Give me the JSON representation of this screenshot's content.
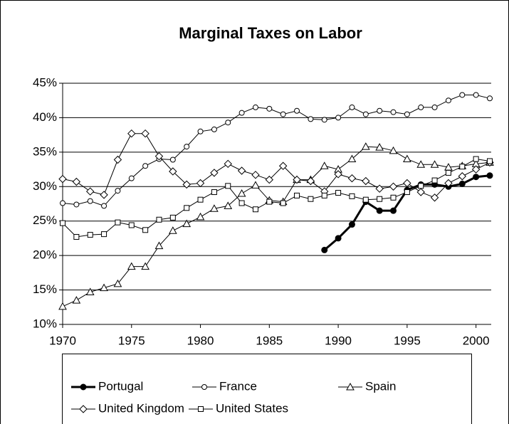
{
  "chart_data": {
    "type": "line",
    "title": "Marginal Taxes on Labor",
    "x": [
      1970,
      1971,
      1972,
      1973,
      1974,
      1975,
      1976,
      1977,
      1978,
      1979,
      1980,
      1981,
      1982,
      1983,
      1984,
      1985,
      1986,
      1987,
      1988,
      1989,
      1990,
      1991,
      1992,
      1993,
      1994,
      1995,
      1996,
      1997,
      1998,
      1999,
      2000,
      2001
    ],
    "xlim": [
      1970,
      2001
    ],
    "xticks": [
      1970,
      1975,
      1980,
      1985,
      1990,
      1995,
      2000
    ],
    "ylim": [
      10,
      45
    ],
    "yticks": [
      {
        "value": 10,
        "label": "10%"
      },
      {
        "value": 15,
        "label": "15%"
      },
      {
        "value": 20,
        "label": "20%"
      },
      {
        "value": 25,
        "label": "25%"
      },
      {
        "value": 30,
        "label": "30%"
      },
      {
        "value": 35,
        "label": "35%"
      },
      {
        "value": 40,
        "label": "40%"
      },
      {
        "value": 45,
        "label": "45%"
      }
    ],
    "grid": true,
    "series": [
      {
        "name": "Portugal",
        "color": "#000000",
        "marker": "filled-circle",
        "values": [
          null,
          null,
          null,
          null,
          null,
          null,
          null,
          null,
          null,
          null,
          null,
          null,
          null,
          null,
          null,
          null,
          null,
          null,
          null,
          20.8,
          22.5,
          24.5,
          27.8,
          26.5,
          26.5,
          29.5,
          30.3,
          30.3,
          30.0,
          30.4,
          31.4,
          31.6
        ]
      },
      {
        "name": "France",
        "color": "#000000",
        "marker": "circle",
        "values": [
          27.6,
          27.4,
          27.9,
          27.2,
          29.4,
          31.2,
          33.0,
          34.0,
          33.9,
          35.8,
          38.0,
          38.3,
          39.3,
          40.7,
          41.5,
          41.3,
          40.5,
          41.0,
          39.8,
          39.7,
          40.0,
          41.5,
          40.5,
          41.0,
          40.8,
          40.5,
          41.5,
          41.5,
          42.5,
          43.3,
          43.3,
          42.8
        ]
      },
      {
        "name": "Spain",
        "color": "#000000",
        "marker": "triangle",
        "values": [
          12.6,
          13.5,
          14.7,
          15.3,
          15.9,
          18.4,
          18.4,
          21.4,
          23.6,
          24.6,
          25.6,
          26.8,
          27.2,
          29.0,
          30.2,
          28.0,
          27.8,
          31.0,
          31.0,
          33.0,
          32.5,
          34.0,
          35.8,
          35.7,
          35.2,
          34.0,
          33.2,
          33.2,
          32.8,
          33.0,
          33.3,
          33.5
        ]
      },
      {
        "name": "United Kingdom",
        "color": "#000000",
        "marker": "diamond",
        "values": [
          31.1,
          30.7,
          29.3,
          28.8,
          33.9,
          37.7,
          37.7,
          34.4,
          32.2,
          30.3,
          30.5,
          32.0,
          33.3,
          32.3,
          31.7,
          31.0,
          33.0,
          31.0,
          30.8,
          29.3,
          31.8,
          31.2,
          30.8,
          29.7,
          30.0,
          30.5,
          29.2,
          28.4,
          30.5,
          31.5,
          32.5,
          33.5
        ]
      },
      {
        "name": "United States",
        "color": "#000000",
        "marker": "square",
        "values": [
          24.7,
          22.7,
          23.0,
          23.1,
          24.8,
          24.4,
          23.7,
          25.2,
          25.5,
          26.9,
          28.1,
          29.2,
          30.1,
          27.6,
          26.7,
          27.8,
          27.6,
          28.7,
          28.2,
          28.7,
          29.1,
          28.6,
          28.1,
          28.2,
          28.4,
          29.2,
          30.1,
          30.9,
          32.0,
          32.9,
          34.0,
          33.7
        ]
      }
    ]
  }
}
